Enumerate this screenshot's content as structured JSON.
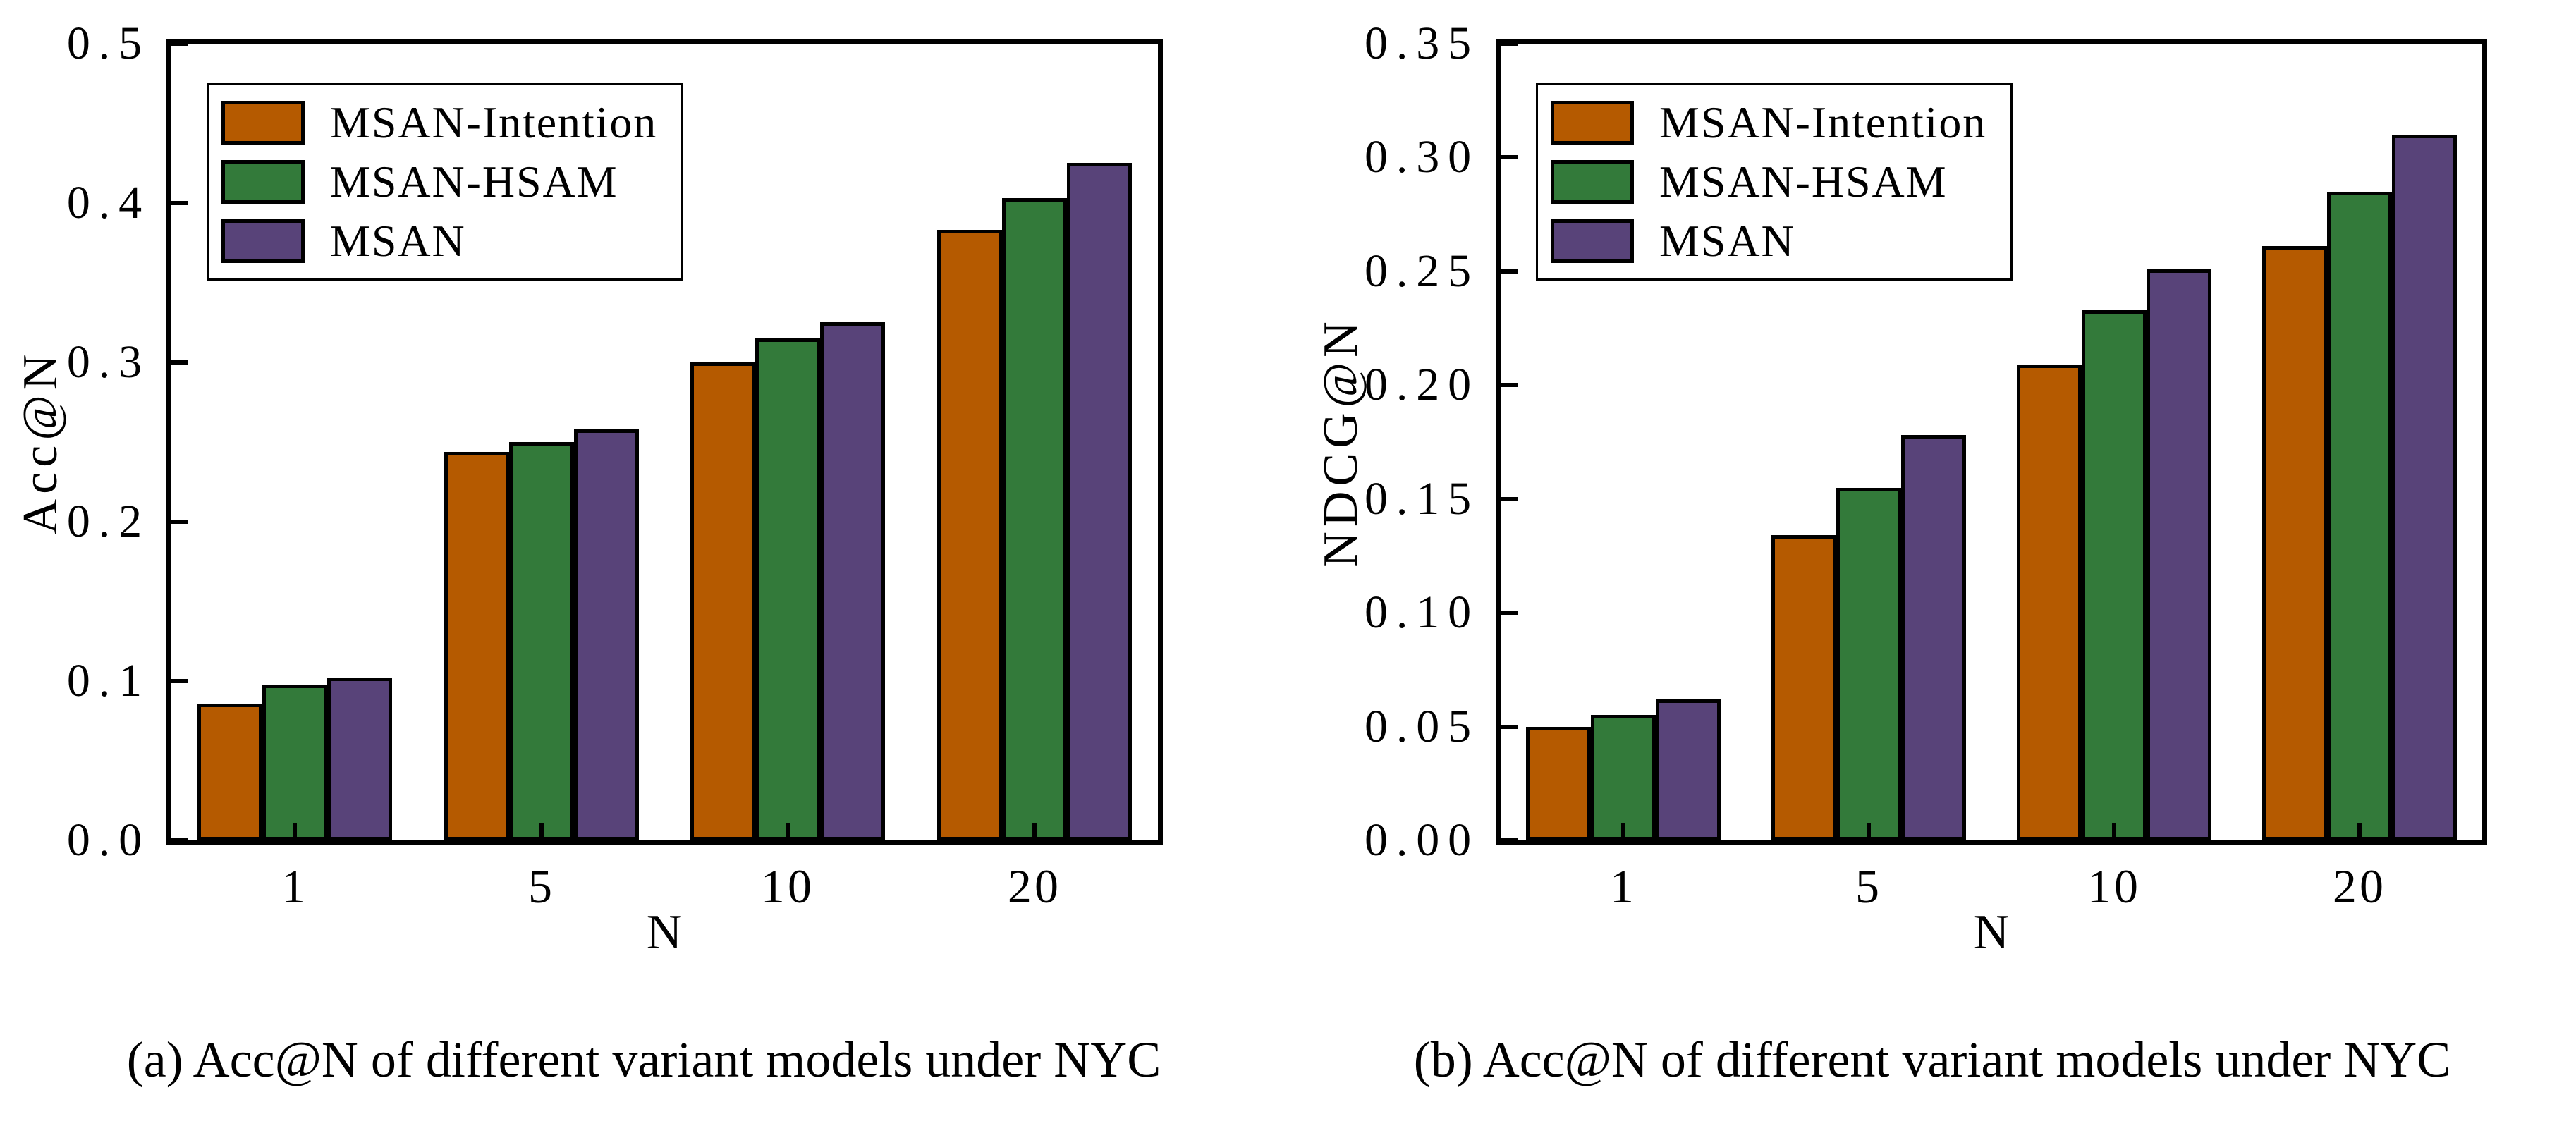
{
  "figure": {
    "background": "#ffffff",
    "axis_color": "#000000"
  },
  "chart_data": [
    {
      "type": "bar",
      "panel": "a",
      "title": "",
      "ylabel": "Acc@N",
      "xlabel": "N",
      "caption": "(a) Acc@N of different variant models under NYC",
      "categories": [
        "1",
        "5",
        "10",
        "20"
      ],
      "series": [
        {
          "name": "MSAN-Intention",
          "color": "#b55a00",
          "values": [
            0.086,
            0.244,
            0.3,
            0.383
          ]
        },
        {
          "name": "MSAN-HSAM",
          "color": "#337a3a",
          "values": [
            0.098,
            0.25,
            0.315,
            0.403
          ]
        },
        {
          "name": "MSAN",
          "color": "#584379",
          "values": [
            0.102,
            0.258,
            0.325,
            0.425
          ]
        }
      ],
      "ylim": [
        0,
        0.5
      ],
      "yticks": [
        0,
        0.1,
        0.2,
        0.3,
        0.4,
        0.5
      ],
      "ytick_labels": [
        "0.0",
        "0.1",
        "0.2",
        "0.3",
        "0.4",
        "0.5"
      ],
      "legend_position": "upper left",
      "grid": false
    },
    {
      "type": "bar",
      "panel": "b",
      "title": "",
      "ylabel": "NDCG@N",
      "xlabel": "N",
      "caption": "(b) Acc@N of different variant models under NYC",
      "categories": [
        "1",
        "5",
        "10",
        "20"
      ],
      "series": [
        {
          "name": "MSAN-Intention",
          "color": "#b55a00",
          "values": [
            0.05,
            0.134,
            0.209,
            0.261
          ]
        },
        {
          "name": "MSAN-HSAM",
          "color": "#337a3a",
          "values": [
            0.055,
            0.155,
            0.233,
            0.285
          ]
        },
        {
          "name": "MSAN",
          "color": "#584379",
          "values": [
            0.062,
            0.178,
            0.251,
            0.31
          ]
        }
      ],
      "ylim": [
        0,
        0.35
      ],
      "yticks": [
        0,
        0.05,
        0.1,
        0.15,
        0.2,
        0.25,
        0.3,
        0.35
      ],
      "ytick_labels": [
        "0.00",
        "0.05",
        "0.10",
        "0.15",
        "0.20",
        "0.25",
        "0.30",
        "0.35"
      ],
      "legend_position": "upper left",
      "grid": false
    }
  ]
}
